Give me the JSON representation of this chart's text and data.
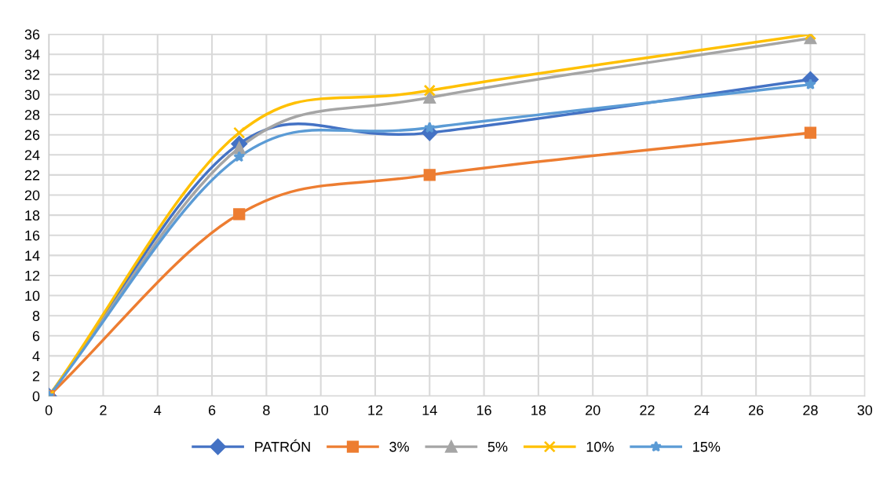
{
  "chart_data": {
    "type": "line",
    "x": [
      0,
      7,
      14,
      28
    ],
    "series": [
      {
        "name": "PATRÓN",
        "color": "#4472c4",
        "marker": "diamond",
        "values": [
          0,
          25.1,
          26.2,
          31.5
        ]
      },
      {
        "name": "3%",
        "color": "#ed7d31",
        "marker": "square",
        "values": [
          0,
          18.1,
          22.0,
          26.2
        ]
      },
      {
        "name": "5%",
        "color": "#a5a5a5",
        "marker": "triangle",
        "values": [
          0,
          24.7,
          29.7,
          35.6
        ]
      },
      {
        "name": "10%",
        "color": "#ffc000",
        "marker": "cross",
        "values": [
          0,
          26.2,
          30.4,
          36.0
        ]
      },
      {
        "name": "15%",
        "color": "#5b9bd5",
        "marker": "star",
        "values": [
          0,
          23.8,
          26.7,
          31.0
        ]
      }
    ],
    "xlim": [
      0,
      30
    ],
    "xticks": [
      0,
      2,
      4,
      6,
      8,
      10,
      12,
      14,
      16,
      18,
      20,
      22,
      24,
      26,
      28,
      30
    ],
    "ylim": [
      0,
      36
    ],
    "yticks": [
      0,
      2,
      4,
      6,
      8,
      10,
      12,
      14,
      16,
      18,
      20,
      22,
      24,
      26,
      28,
      30,
      32,
      34,
      36
    ],
    "grid": true,
    "legend": "bottom",
    "line_style": "solid"
  }
}
